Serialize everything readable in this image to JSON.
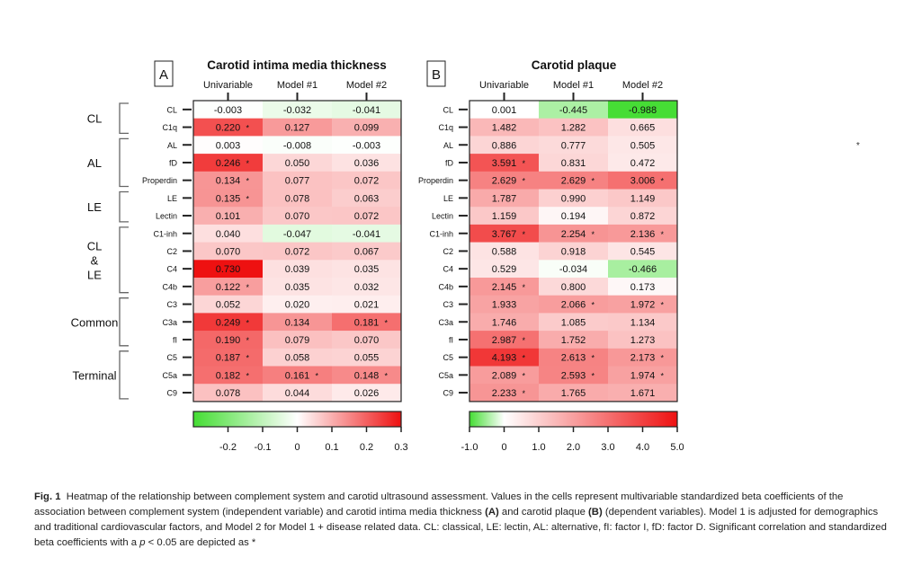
{
  "stray_mark": "*",
  "caption": {
    "figure_label": "Fig. 1",
    "part1": "Heatmap of the relationship between complement system and carotid ultrasound assessment. Values in the cells represent multivariable standardized beta coefficients of the association between complement system (independent variable) and carotid intima media thickness",
    "label_a": "(A)",
    "part2": "and carotid plaque",
    "label_b": "(B)",
    "part3": "(dependent variables). Model 1 is adjusted for demographics and traditional cardiovascular factors, and Model 2 for Model 1 + disease related data. CL: classical, LE: lectin, AL: alternative, fI: factor I, fD: factor D. Significant correlation and standardized beta coefficients with a",
    "p_symbol": "p",
    "part4": "< 0.05 are depicted as *"
  },
  "chart_data": [
    {
      "type": "heatmap",
      "panel": "A",
      "title": "Carotid intima media thickness",
      "columns": [
        "Univariable",
        "Model #1",
        "Model #2"
      ],
      "rows": [
        "CL",
        "C1q",
        "AL",
        "fD",
        "Properdin",
        "LE",
        "Lectin",
        "C1-inh",
        "C2",
        "C4",
        "C4b",
        "C3",
        "C3a",
        "fI",
        "C5",
        "C5a",
        "C9"
      ],
      "values": [
        [
          "-0.003",
          "-0.032",
          "-0.041"
        ],
        [
          "0.220",
          "0.127",
          "0.099"
        ],
        [
          "0.003",
          "-0.008",
          "-0.003"
        ],
        [
          "0.246",
          "0.050",
          "0.036"
        ],
        [
          "0.134",
          "0.077",
          "0.072"
        ],
        [
          "0.135",
          "0.078",
          "0.063"
        ],
        [
          "0.101",
          "0.070",
          "0.072"
        ],
        [
          "0.040",
          "-0.047",
          "-0.041"
        ],
        [
          "0.070",
          "0.072",
          "0.067"
        ],
        [
          "0.730",
          "0.039",
          "0.035"
        ],
        [
          "0.122",
          "0.035",
          "0.032"
        ],
        [
          "0.052",
          "0.020",
          "0.021"
        ],
        [
          "0.249",
          "0.134",
          "0.181"
        ],
        [
          "0.190",
          "0.079",
          "0.070"
        ],
        [
          "0.187",
          "0.058",
          "0.055"
        ],
        [
          "0.182",
          "0.161",
          "0.148"
        ],
        [
          "0.078",
          "0.044",
          "0.026"
        ]
      ],
      "significant": [
        [
          false,
          false,
          false
        ],
        [
          true,
          false,
          false
        ],
        [
          false,
          false,
          false
        ],
        [
          true,
          false,
          false
        ],
        [
          true,
          false,
          false
        ],
        [
          true,
          false,
          false
        ],
        [
          false,
          false,
          false
        ],
        [
          false,
          false,
          false
        ],
        [
          false,
          false,
          false
        ],
        [
          false,
          false,
          false
        ],
        [
          true,
          false,
          false
        ],
        [
          false,
          false,
          false
        ],
        [
          true,
          false,
          true
        ],
        [
          true,
          false,
          false
        ],
        [
          true,
          false,
          false
        ],
        [
          true,
          true,
          true
        ],
        [
          false,
          false,
          false
        ]
      ],
      "color_scale": {
        "min": -0.3,
        "max": 0.3,
        "colors": [
          "#44dd33",
          "#ffffff",
          "#ee1111"
        ]
      },
      "colorbar_ticks": [
        "-0.2",
        "-0.1",
        "0",
        "0.1",
        "0.2",
        "0.3"
      ],
      "colorbar_tick_values": [
        -0.2,
        -0.1,
        0,
        0.1,
        0.2,
        0.3
      ],
      "colorbar_range": [
        -0.3,
        0.3
      ],
      "groups": [
        {
          "label": [
            "CL"
          ],
          "row_start": 0,
          "row_end": 1
        },
        {
          "label": [
            "AL"
          ],
          "row_start": 2,
          "row_end": 4
        },
        {
          "label": [
            "LE"
          ],
          "row_start": 5,
          "row_end": 6
        },
        {
          "label": [
            "CL",
            "&",
            "LE"
          ],
          "row_start": 7,
          "row_end": 10
        },
        {
          "label": [
            "Common"
          ],
          "row_start": 11,
          "row_end": 13
        },
        {
          "label": [
            "Terminal"
          ],
          "row_start": 14,
          "row_end": 16
        }
      ]
    },
    {
      "type": "heatmap",
      "panel": "B",
      "title": "Carotid plaque",
      "columns": [
        "Univariable",
        "Model #1",
        "Model #2"
      ],
      "rows": [
        "CL",
        "C1q",
        "AL",
        "fD",
        "Properdin",
        "LE",
        "Lectin",
        "C1-inh",
        "C2",
        "C4",
        "C4b",
        "C3",
        "C3a",
        "fI",
        "C5",
        "C5a",
        "C9"
      ],
      "values": [
        [
          "0.001",
          "-0.445",
          "-0.988"
        ],
        [
          "1.482",
          "1.282",
          "0.665"
        ],
        [
          "0.886",
          "0.777",
          "0.505"
        ],
        [
          "3.591",
          "0.831",
          "0.472"
        ],
        [
          "2.629",
          "2.629",
          "3.006"
        ],
        [
          "1.787",
          "0.990",
          "1.149"
        ],
        [
          "1.159",
          "0.194",
          "0.872"
        ],
        [
          "3.767",
          "2.254",
          "2.136"
        ],
        [
          "0.588",
          "0.918",
          "0.545"
        ],
        [
          "0.529",
          "-0.034",
          "-0.466"
        ],
        [
          "2.145",
          "0.800",
          "0.173"
        ],
        [
          "1.933",
          "2.066",
          "1.972"
        ],
        [
          "1.746",
          "1.085",
          "1.134"
        ],
        [
          "2.987",
          "1.752",
          "1.273"
        ],
        [
          "4.193",
          "2.613",
          "2.173"
        ],
        [
          "2.089",
          "2.593",
          "1.974"
        ],
        [
          "2.233",
          "1.765",
          "1.671"
        ]
      ],
      "significant": [
        [
          false,
          false,
          false
        ],
        [
          false,
          false,
          false
        ],
        [
          false,
          false,
          false
        ],
        [
          true,
          false,
          false
        ],
        [
          true,
          true,
          true
        ],
        [
          false,
          false,
          false
        ],
        [
          false,
          false,
          false
        ],
        [
          true,
          true,
          true
        ],
        [
          false,
          false,
          false
        ],
        [
          false,
          false,
          false
        ],
        [
          true,
          false,
          false
        ],
        [
          false,
          true,
          true
        ],
        [
          false,
          false,
          false
        ],
        [
          true,
          false,
          false
        ],
        [
          true,
          true,
          true
        ],
        [
          true,
          true,
          true
        ],
        [
          true,
          false,
          false
        ]
      ],
      "color_scale": {
        "min": -1.0,
        "max": 5.0,
        "colors": [
          "#44dd33",
          "#ffffff",
          "#ee1111"
        ]
      },
      "colorbar_ticks": [
        "-1.0",
        "0",
        "1.0",
        "2.0",
        "3.0",
        "4.0",
        "5.0"
      ],
      "colorbar_tick_values": [
        -1,
        0,
        1,
        2,
        3,
        4,
        5
      ],
      "colorbar_range": [
        -1.0,
        5.0
      ]
    }
  ]
}
